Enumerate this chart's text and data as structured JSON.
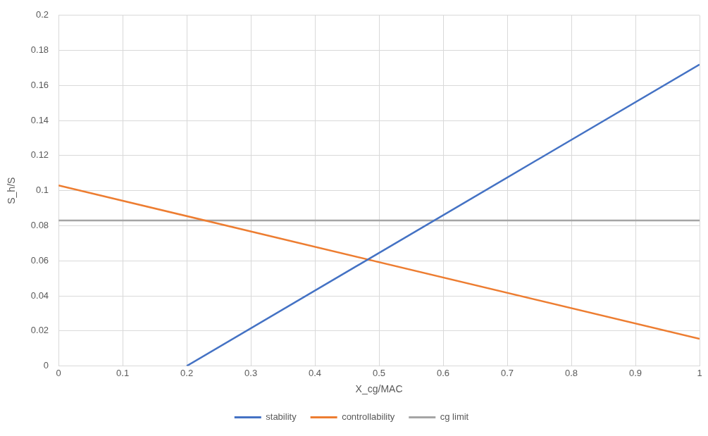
{
  "chart_data": {
    "type": "line",
    "xlabel": "X_cg/MAC",
    "ylabel": "S_h/S",
    "xlim": [
      0,
      1
    ],
    "xticks": [
      0,
      0.1,
      0.2,
      0.3,
      0.4,
      0.5,
      0.6,
      0.7,
      0.8,
      0.9,
      1
    ],
    "ylim": [
      0,
      0.2
    ],
    "yticks": [
      0,
      0.02,
      0.04,
      0.06,
      0.08,
      0.1,
      0.12,
      0.14,
      0.16,
      0.18,
      0.2
    ],
    "series": [
      {
        "name": "stability",
        "color": "#4472c4",
        "x": [
          0.2,
          1
        ],
        "values": [
          0,
          0.172
        ]
      },
      {
        "name": "controllability",
        "color": "#ed7d31",
        "x": [
          0,
          1
        ],
        "values": [
          0.103,
          0.0155
        ]
      },
      {
        "name": "cg limit",
        "color": "#a5a5a5",
        "x": [
          0,
          1
        ],
        "values": [
          0.083,
          0.083
        ]
      }
    ],
    "grid": true,
    "legend": "bottom",
    "marker": "none",
    "line_style": "solid"
  }
}
